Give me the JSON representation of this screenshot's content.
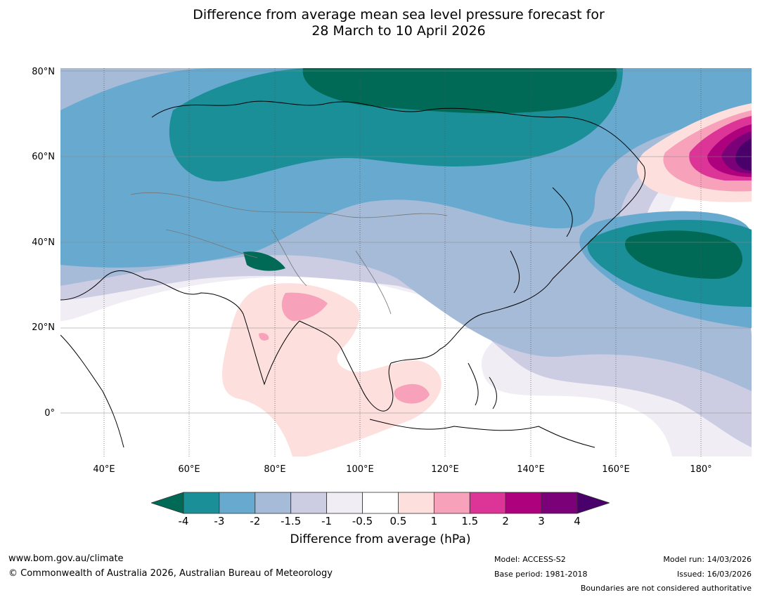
{
  "title": {
    "line1": "Difference from average mean sea level pressure forecast for",
    "line2": "28 March to 10 April 2026"
  },
  "map": {
    "lat_labels": [
      "80°N",
      "60°N",
      "40°N",
      "20°N",
      "0°"
    ],
    "lon_labels": [
      "40°E",
      "60°E",
      "80°E",
      "100°E",
      "120°E",
      "140°E",
      "160°E",
      "180°"
    ]
  },
  "colorbar": {
    "ticks": [
      "-4",
      "-3",
      "-2",
      "-1.5",
      "-1",
      "-0.5",
      "0.5",
      "1",
      "1.5",
      "2",
      "3",
      "4"
    ],
    "colors": [
      "#006a56",
      "#1a8f98",
      "#67a9cf",
      "#a6bbd8",
      "#cccde3",
      "#f1edf4",
      "#ffffff",
      "#fde0dd",
      "#f7a1ba",
      "#dd3497",
      "#ae017e",
      "#7a0177",
      "#49006a"
    ],
    "label": "Difference from average (hPa)"
  },
  "footer": {
    "website": "www.bom.gov.au/climate",
    "copyright": "© Commonwealth of Australia 2026, Australian Bureau of Meteorology",
    "model": "Model: ACCESS-S2",
    "base_period": "Base period: 1981-2018",
    "model_run": "Model run: 14/03/2026",
    "issued": "Issued: 16/03/2026",
    "boundaries": "Boundaries are not considered authoritative"
  }
}
